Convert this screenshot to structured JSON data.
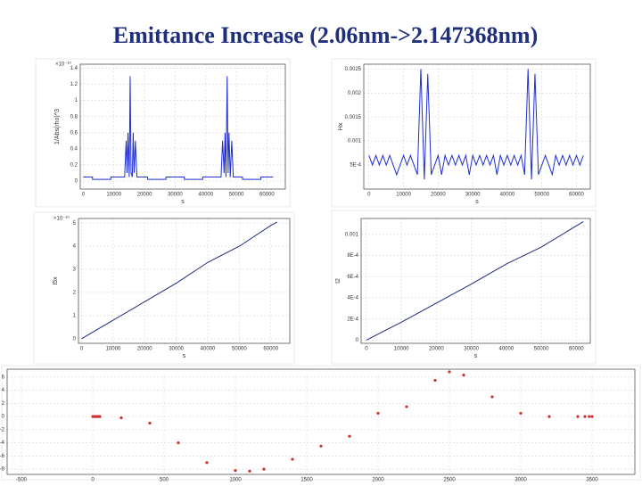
{
  "title": "Emittance Increase (2.06nm->2.147368nm)",
  "chart_data": [
    {
      "type": "line",
      "ylabel": "1/Abs(rho)^3",
      "xlabel": "s",
      "y_exponent": "×10⁻¹⁰",
      "color": "#1f2fd0",
      "grid": true,
      "x": [
        0,
        3000,
        3001,
        9000,
        9001,
        13000,
        13500,
        14000,
        14300,
        14600,
        15000,
        15300,
        15600,
        16000,
        16300,
        16600,
        17000,
        17500,
        18000,
        21000,
        21001,
        27000,
        27001,
        33000,
        33001,
        39000,
        39001,
        44500,
        45000,
        45500,
        46000,
        46300,
        46600,
        47000,
        47300,
        47600,
        48000,
        48500,
        49000,
        52000,
        52001,
        58000,
        58001,
        62000
      ],
      "values": [
        0.05,
        0.05,
        0.02,
        0.02,
        0.05,
        0.05,
        0.05,
        0.5,
        0.1,
        0.6,
        0.05,
        1.3,
        0.1,
        0.05,
        0.6,
        0.1,
        0.5,
        0.05,
        0.05,
        0.05,
        0.02,
        0.02,
        0.05,
        0.05,
        0.02,
        0.02,
        0.05,
        0.05,
        0.05,
        0.5,
        0.1,
        0.6,
        0.05,
        1.3,
        0.1,
        0.6,
        0.05,
        0.5,
        0.05,
        0.05,
        0.02,
        0.02,
        0.05,
        0.05
      ],
      "xlim": [
        -1000,
        66000
      ],
      "ylim": [
        -0.1,
        1.45
      ],
      "xticks": [
        0,
        10000,
        20000,
        30000,
        40000,
        50000,
        60000
      ],
      "yticks": [
        0,
        0.2,
        0.4,
        0.6,
        0.8,
        1,
        1.2,
        1.4
      ]
    },
    {
      "type": "line",
      "ylabel": "Hx",
      "xlabel": "s",
      "color": "#1f2fd0",
      "grid": true,
      "x": [
        0,
        1000,
        2000,
        3000,
        4000,
        5000,
        6000,
        7000,
        8000,
        9000,
        10000,
        11000,
        12000,
        13000,
        14000,
        15000,
        16000,
        17000,
        18000,
        19000,
        20000,
        21000,
        22000,
        23000,
        24000,
        25000,
        26000,
        27000,
        28000,
        29000,
        30000,
        31000,
        32000,
        33000,
        34000,
        35000,
        36000,
        37000,
        38000,
        39000,
        40000,
        41000,
        42000,
        43000,
        44000,
        45000,
        46000,
        47000,
        48000,
        49000,
        50000,
        51000,
        52000,
        53000,
        54000,
        55000,
        56000,
        57000,
        58000,
        59000,
        60000,
        61000,
        62000
      ],
      "values": [
        0.0007,
        0.0005,
        0.0007,
        0.0005,
        0.0007,
        0.0005,
        0.0007,
        0.0005,
        0.0003,
        0.0005,
        0.0007,
        0.0005,
        0.0007,
        0.0005,
        0.0003,
        0.0025,
        0.0002,
        0.0024,
        0.0003,
        0.0005,
        0.0007,
        0.0003,
        0.0007,
        0.0005,
        0.0007,
        0.0005,
        0.0007,
        0.0005,
        0.0007,
        0.0003,
        0.0007,
        0.0005,
        0.0007,
        0.0005,
        0.0007,
        0.0005,
        0.0007,
        0.0003,
        0.0007,
        0.0005,
        0.0007,
        0.0005,
        0.0007,
        0.0005,
        0.0007,
        0.0003,
        0.0025,
        0.0002,
        0.0024,
        0.0003,
        0.0005,
        0.0007,
        0.0005,
        0.0003,
        0.0007,
        0.0005,
        0.0007,
        0.0005,
        0.0007,
        0.0005,
        0.0007,
        0.0005,
        0.0007
      ],
      "xlim": [
        -1500,
        64000
      ],
      "ylim": [
        0,
        0.0026
      ],
      "xticks": [
        0,
        10000,
        20000,
        30000,
        40000,
        50000,
        60000
      ],
      "yticks": [
        {
          "value": 0.0005,
          "label": "5E-4"
        },
        0.001,
        0.0015,
        0.002,
        0.0025
      ]
    },
    {
      "type": "line",
      "ylabel": "I5x",
      "xlabel": "s",
      "y_exponent": "×10⁻¹⁰",
      "color": "#1a2a80",
      "grid": true,
      "x": [
        0,
        10000,
        20000,
        30000,
        40000,
        50000,
        60000,
        62000
      ],
      "values": [
        0,
        0.8,
        1.6,
        2.4,
        3.3,
        4.0,
        4.9,
        5.05
      ],
      "xlim": [
        -1000,
        66000
      ],
      "ylim": [
        -0.2,
        5.2
      ],
      "xticks": [
        0,
        10000,
        20000,
        30000,
        40000,
        50000,
        60000
      ],
      "yticks": [
        0,
        1,
        2,
        3,
        4,
        5
      ]
    },
    {
      "type": "line",
      "ylabel": "I2",
      "xlabel": "s",
      "color": "#1a2a80",
      "grid": true,
      "x": [
        0,
        10000,
        20000,
        30000,
        40000,
        50000,
        60000,
        62000
      ],
      "values": [
        0,
        0.00017,
        0.00035,
        0.00053,
        0.00072,
        0.00088,
        0.00108,
        0.00112
      ],
      "xlim": [
        -1500,
        64000
      ],
      "ylim": [
        -3e-05,
        0.00115
      ],
      "xticks": [
        0,
        10000,
        20000,
        30000,
        40000,
        50000,
        60000
      ],
      "yticks": [
        0,
        {
          "value": 0.0002,
          "label": "2E-4"
        },
        {
          "value": 0.0004,
          "label": "4E-4"
        },
        {
          "value": 0.0006,
          "label": "6E-4"
        },
        {
          "value": 0.0008,
          "label": "8E-4"
        },
        0.001
      ]
    },
    {
      "type": "scatter",
      "color": "#d03030",
      "grid": true,
      "x": [
        0,
        10,
        20,
        30,
        40,
        50,
        200,
        400,
        600,
        800,
        1000,
        1100,
        1200,
        1400,
        1600,
        1800,
        2000,
        2200,
        2400,
        2500,
        2600,
        2800,
        3000,
        3200,
        3400,
        3450,
        3480,
        3500
      ],
      "values": [
        0,
        0,
        0,
        0,
        0,
        0,
        -0.2,
        -1,
        -4,
        -7,
        -8.2,
        -8.3,
        -8,
        -6.5,
        -4.5,
        -3,
        0.5,
        1.5,
        5.5,
        6.8,
        6.3,
        3,
        0.5,
        0,
        0,
        0,
        0,
        0
      ],
      "xlim": [
        -600,
        3800
      ],
      "ylim": [
        -8.8,
        7.2
      ],
      "xticks": [
        -500,
        0,
        500,
        1000,
        1500,
        2000,
        2500,
        3000,
        3500
      ],
      "yticks": [
        -8,
        -6,
        -4,
        -2,
        0,
        2,
        4,
        6
      ]
    }
  ]
}
